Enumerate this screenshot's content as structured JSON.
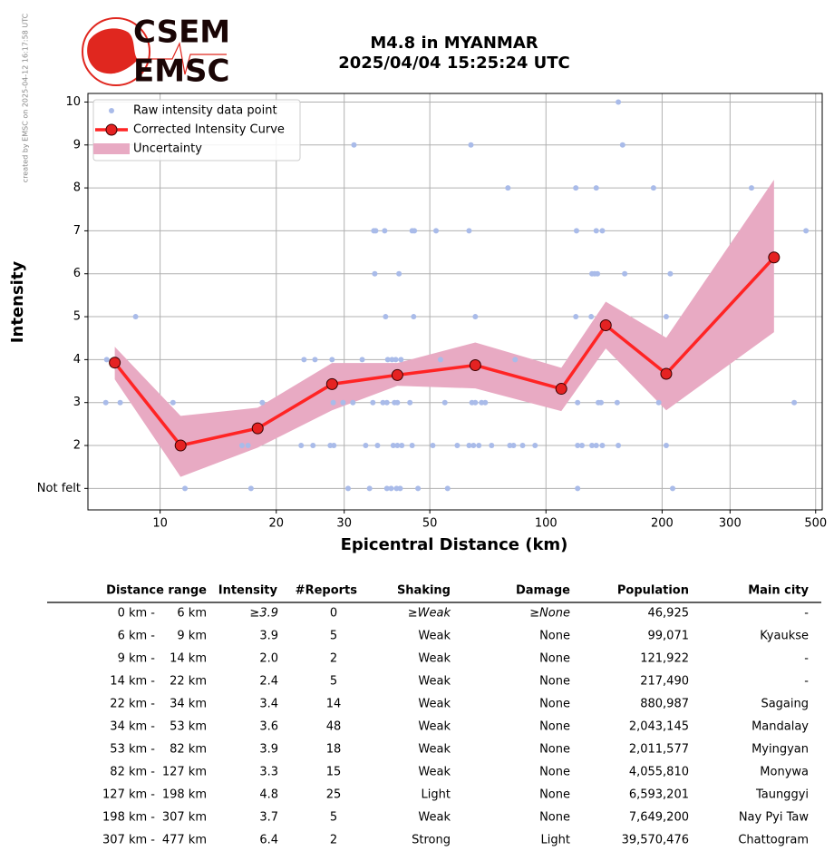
{
  "header": {
    "logo_top": "CSEM",
    "logo_bottom": "EMSC",
    "side_note": "created by EMSC on 2025-04-12 16:17:58 UTC"
  },
  "chart_data": {
    "type": "line",
    "title": "M4.8 in MYANMAR",
    "subtitle": "2025/04/04 15:25:24 UTC",
    "xlabel": "Epicentral Distance (km)",
    "ylabel": "Intensity",
    "xscale": "log",
    "xlim": [
      6.5,
      520
    ],
    "xticks": [
      10,
      20,
      30,
      50,
      100,
      200,
      300,
      500
    ],
    "ylim": [
      0.5,
      10.2
    ],
    "yticks": [
      {
        "value": 1,
        "label": "Not felt"
      },
      2,
      3,
      4,
      5,
      6,
      7,
      8,
      9,
      10
    ],
    "grid": true,
    "legend": "upper left",
    "series": [
      {
        "name": "Raw intensity data point",
        "type": "scatter",
        "color": "#a9bbe9",
        "x": [
          154,
          31.8,
          63.9,
          158,
          79.7,
          119.5,
          135,
          190,
          341,
          35.8,
          36.2,
          38.2,
          45,
          45.6,
          51.9,
          63.2,
          120,
          135,
          140,
          472,
          36,
          41.6,
          131.6,
          133.7,
          136,
          160,
          210,
          8.64,
          38.4,
          45.4,
          65.6,
          119.5,
          131,
          205,
          7.27,
          23.6,
          25.2,
          27.9,
          33.4,
          38.9,
          39.9,
          40.8,
          42.1,
          53.3,
          83.2,
          7.23,
          7.88,
          10.8,
          18.4,
          28.1,
          29.8,
          31.6,
          35.6,
          37.8,
          38.7,
          40.5,
          41.2,
          44.4,
          54.7,
          64.3,
          65.6,
          68.1,
          69.6,
          120.8,
          136.7,
          138.9,
          153,
          196,
          440,
          16.3,
          16.9,
          23.2,
          24.9,
          27.6,
          28.2,
          34.1,
          36.6,
          40.2,
          41.2,
          42.3,
          45,
          50.9,
          58.9,
          63.2,
          64.9,
          67,
          72.3,
          80.6,
          82.4,
          87,
          93.7,
          120.8,
          124,
          131.6,
          135,
          140,
          154,
          205,
          11.6,
          17.2,
          30.7,
          34.9,
          38.7,
          39.7,
          41,
          41.9,
          46.6,
          55.6,
          120.8,
          213
        ],
        "values": [
          10,
          9,
          9,
          9,
          8,
          8,
          8,
          8,
          8,
          7,
          7,
          7,
          7,
          7,
          7,
          7,
          7,
          7,
          7,
          7,
          6,
          6,
          6,
          6,
          6,
          6,
          6,
          5,
          5,
          5,
          5,
          5,
          5,
          5,
          4,
          4,
          4,
          4,
          4,
          4,
          4,
          4,
          4,
          4,
          4,
          3,
          3,
          3,
          3,
          3,
          3,
          3,
          3,
          3,
          3,
          3,
          3,
          3,
          3,
          3,
          3,
          3,
          3,
          3,
          3,
          3,
          3,
          3,
          3,
          2,
          2,
          2,
          2,
          2,
          2,
          2,
          2,
          2,
          2,
          2,
          2,
          2,
          2,
          2,
          2,
          2,
          2,
          2,
          2,
          2,
          2,
          2,
          2,
          2,
          2,
          2,
          2,
          2,
          1,
          1,
          1,
          1,
          1,
          1,
          1,
          1,
          1,
          1,
          1,
          1
        ]
      },
      {
        "name": "Corrected Intensity Curve",
        "type": "line",
        "color": "#ff2424",
        "x": [
          7.63,
          11.3,
          17.9,
          27.9,
          41.2,
          65.6,
          109.6,
          142.9,
          205,
          390
        ],
        "values": [
          3.93,
          2.0,
          2.4,
          3.43,
          3.64,
          3.87,
          3.32,
          4.8,
          3.67,
          6.38
        ]
      },
      {
        "name": "Uncertainty",
        "type": "band",
        "color": "#e8aac3",
        "x": [
          7.63,
          11.3,
          17.9,
          27.9,
          41.2,
          65.6,
          109.6,
          142.9,
          205,
          390
        ],
        "lower": [
          3.54,
          1.27,
          1.95,
          2.82,
          3.39,
          3.33,
          2.8,
          4.26,
          2.82,
          4.64
        ],
        "upper": [
          4.3,
          2.69,
          2.88,
          3.92,
          3.92,
          4.4,
          3.81,
          5.35,
          4.51,
          8.19
        ]
      }
    ]
  },
  "table": {
    "header": [
      "Distance range",
      "Intensity",
      "#Reports",
      "Shaking",
      "Damage",
      "Population",
      "Main city"
    ],
    "rows": [
      [
        "0 km -",
        "6 km",
        "≥3.9",
        "0",
        "≥Weak",
        "≥None",
        "46,925",
        "-"
      ],
      [
        "6 km -",
        "9 km",
        "3.9",
        "5",
        "Weak",
        "None",
        "99,071",
        "Kyaukse"
      ],
      [
        "9 km -",
        "14 km",
        "2.0",
        "2",
        "Weak",
        "None",
        "121,922",
        "-"
      ],
      [
        "14 km -",
        "22 km",
        "2.4",
        "5",
        "Weak",
        "None",
        "217,490",
        "-"
      ],
      [
        "22 km -",
        "34 km",
        "3.4",
        "14",
        "Weak",
        "None",
        "880,987",
        "Sagaing"
      ],
      [
        "34 km -",
        "53 km",
        "3.6",
        "48",
        "Weak",
        "None",
        "2,043,145",
        "Mandalay"
      ],
      [
        "53 km -",
        "82 km",
        "3.9",
        "18",
        "Weak",
        "None",
        "2,011,577",
        "Myingyan"
      ],
      [
        "82 km -",
        "127 km",
        "3.3",
        "15",
        "Weak",
        "None",
        "4,055,810",
        "Monywa"
      ],
      [
        "127 km -",
        "198 km",
        "4.8",
        "25",
        "Light",
        "None",
        "6,593,201",
        "Taunggyi"
      ],
      [
        "198 km -",
        "307 km",
        "3.7",
        "5",
        "Weak",
        "None",
        "7,649,200",
        "Nay Pyi Taw"
      ],
      [
        "307 km -",
        "477 km",
        "6.4",
        "2",
        "Strong",
        "Light",
        "39,570,476",
        "Chattogram"
      ]
    ]
  }
}
